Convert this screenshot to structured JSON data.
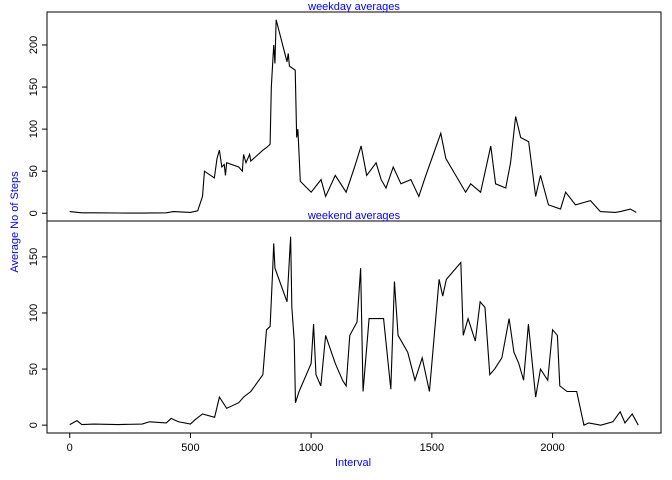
{
  "ylabel": "Average No of Steps",
  "chart_data": [
    {
      "type": "line",
      "title": "weekday averages",
      "color": "#000000",
      "xlim": [
        -94.2,
        2449.2
      ],
      "ylim": [
        -9.2,
        239.2
      ],
      "yticks": [
        0,
        50,
        100,
        150,
        200
      ],
      "x": [
        0,
        50,
        100,
        200,
        300,
        400,
        430,
        500,
        530,
        550,
        558,
        599,
        610,
        620,
        630,
        640,
        645,
        650,
        700,
        715,
        720,
        730,
        745,
        750,
        800,
        815,
        830,
        835,
        845,
        850,
        855,
        900,
        905,
        910,
        934,
        940,
        945,
        950,
        955,
        1000,
        1041,
        1060,
        1100,
        1145,
        1180,
        1207,
        1230,
        1269,
        1290,
        1310,
        1340,
        1372,
        1413,
        1446,
        1475,
        1537,
        1558,
        1599,
        1640,
        1661,
        1702,
        1744,
        1764,
        1806,
        1826,
        1847,
        1868,
        1901,
        1930,
        1950,
        1983,
        2033,
        2054,
        2095,
        2157,
        2198,
        2260,
        2281,
        2322,
        2347
      ],
      "values": [
        2,
        0.5,
        0.5,
        0.3,
        0.2,
        0.5,
        2,
        1,
        3,
        20,
        50,
        42,
        65,
        75,
        55,
        58,
        45,
        60,
        55,
        50,
        70,
        60,
        70,
        62,
        75,
        78,
        82,
        150,
        200,
        178,
        230,
        180,
        190,
        175,
        170,
        90,
        100,
        70,
        38,
        25,
        40,
        20,
        45,
        25,
        55,
        80,
        45,
        60,
        40,
        30,
        55,
        35,
        40,
        20,
        45,
        95,
        65,
        45,
        25,
        35,
        25,
        80,
        35,
        30,
        60,
        115,
        90,
        85,
        20,
        45,
        10,
        5,
        25,
        10,
        15,
        2,
        1,
        2,
        5,
        1
      ]
    },
    {
      "type": "line",
      "title": "weekend averages",
      "xlabel": "Interval",
      "color": "#000000",
      "xlim": [
        -94.2,
        2449.2
      ],
      "ylim": [
        -7,
        182
      ],
      "xticks": [
        0,
        500,
        1000,
        1500,
        2000
      ],
      "yticks": [
        0,
        50,
        100,
        150
      ],
      "x": [
        0,
        30,
        50,
        100,
        200,
        300,
        330,
        400,
        420,
        450,
        500,
        520,
        550,
        600,
        620,
        650,
        700,
        720,
        750,
        800,
        815,
        830,
        840,
        845,
        850,
        900,
        915,
        920,
        930,
        935,
        950,
        1000,
        1010,
        1020,
        1040,
        1060,
        1100,
        1130,
        1145,
        1160,
        1190,
        1205,
        1215,
        1240,
        1270,
        1300,
        1330,
        1345,
        1360,
        1400,
        1430,
        1460,
        1490,
        1530,
        1545,
        1560,
        1600,
        1620,
        1630,
        1650,
        1680,
        1700,
        1720,
        1740,
        1760,
        1790,
        1820,
        1840,
        1860,
        1880,
        1900,
        1930,
        1950,
        1980,
        2000,
        2020,
        2030,
        2060,
        2100,
        2130,
        2150,
        2200,
        2250,
        2280,
        2300,
        2330,
        2355
      ],
      "values": [
        0.5,
        4,
        0.5,
        1,
        0.5,
        1,
        3,
        2,
        6,
        3,
        1,
        5,
        10,
        7,
        25,
        15,
        20,
        25,
        30,
        45,
        85,
        88,
        135,
        162,
        140,
        110,
        168,
        105,
        75,
        20,
        30,
        55,
        90,
        45,
        35,
        80,
        55,
        40,
        35,
        80,
        92,
        140,
        30,
        95,
        95,
        95,
        32,
        128,
        80,
        65,
        40,
        60,
        30,
        130,
        115,
        130,
        140,
        145,
        80,
        95,
        75,
        110,
        105,
        45,
        50,
        60,
        95,
        65,
        55,
        40,
        90,
        25,
        50,
        40,
        85,
        80,
        35,
        30,
        30,
        0,
        2,
        0,
        3,
        12,
        2,
        10,
        0
      ]
    }
  ]
}
